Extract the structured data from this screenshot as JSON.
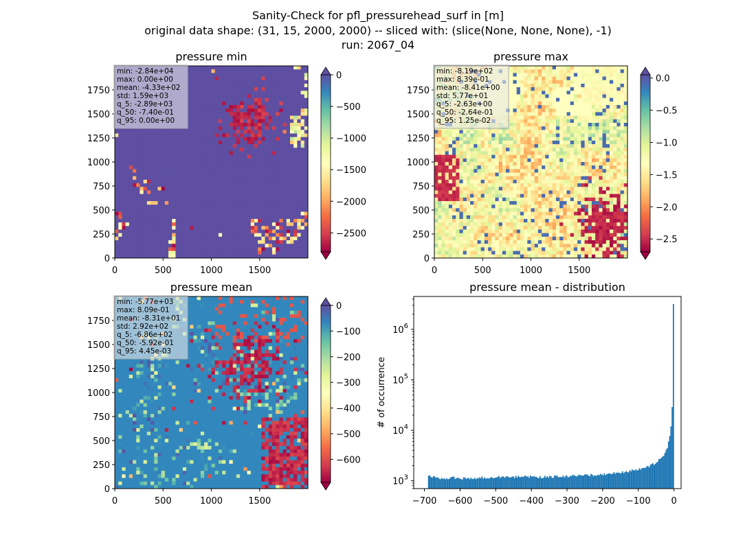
{
  "figure": {
    "title_lines": [
      "Sanity-Check for pfl_pressurehead_surf in [m]",
      "original data shape: (31, 15, 2000, 2000) -- sliced with: (slice(None, None, None), -1)",
      "run: 2067_04"
    ]
  },
  "colors": {
    "hist_bar": "#1f77b4",
    "colormap": "Spectral"
  },
  "panels": {
    "min": {
      "title": "pressure min",
      "stats": [
        "min: -2.84e+04",
        "max: 0.00e+00",
        "mean: -4.33e+02",
        "std: 1.59e+03",
        "q_5: -2.89e+03",
        "q_50: -7.40e-01",
        "q_95: 0.00e+00"
      ],
      "xticks": [
        "0",
        "500",
        "1000",
        "1500"
      ],
      "yticks": [
        "0",
        "250",
        "500",
        "750",
        "1000",
        "1250",
        "1500",
        "1750"
      ],
      "colorbar": {
        "ticks": [
          "0",
          "−500",
          "−1000",
          "−1500",
          "−2000",
          "−2500"
        ],
        "range": [
          -2800,
          0
        ],
        "extend": "both"
      }
    },
    "max": {
      "title": "pressure max",
      "stats": [
        "min: -8.19e+02",
        "max: 8.39e-01",
        "mean: -8.41e+00",
        "std: 5.77e+01",
        "q_5: -2.63e+00",
        "q_50: -2.64e-01",
        "q_95: 1.25e-02"
      ],
      "xticks": [
        "0",
        "500",
        "1000",
        "1500"
      ],
      "yticks": [
        "0",
        "250",
        "500",
        "750",
        "1000",
        "1250",
        "1500",
        "1750"
      ],
      "colorbar": {
        "ticks": [
          "0.0",
          "−0.5",
          "−1.0",
          "−1.5",
          "−2.0",
          "−2.5"
        ],
        "range": [
          -2.7,
          0.05
        ],
        "extend": "both"
      }
    },
    "mean": {
      "title": "pressure mean",
      "stats": [
        "min: -5.77e+03",
        "max: 8.09e-01",
        "mean: -8.31e+01",
        "std: 2.92e+02",
        "q_5: -6.86e+02",
        "q_50: -5.92e-01",
        "q_95: 4.45e-03"
      ],
      "xticks": [
        "0",
        "500",
        "1000",
        "1500"
      ],
      "yticks": [
        "0",
        "250",
        "500",
        "750",
        "1000",
        "1250",
        "1500",
        "1750"
      ],
      "colorbar": {
        "ticks": [
          "0",
          "−100",
          "−200",
          "−300",
          "−400",
          "−500",
          "−600"
        ],
        "range": [
          -690,
          0
        ],
        "extend": "both"
      }
    },
    "hist": {
      "title": "pressure mean - distribution",
      "ylabel": "# of occurrence",
      "xticks": [
        "−700",
        "−600",
        "−500",
        "−400",
        "−300",
        "−200",
        "−100",
        "0"
      ],
      "yticks": [
        "10^3",
        "10^4",
        "10^5",
        "10^6"
      ]
    }
  },
  "chart_data": [
    {
      "type": "heatmap",
      "title": "pressure min",
      "x_range": [
        0,
        2000
      ],
      "y_range": [
        0,
        2000
      ],
      "colorbar_range": [
        -2800,
        0
      ],
      "colormap": "Spectral"
    },
    {
      "type": "heatmap",
      "title": "pressure max",
      "x_range": [
        0,
        2000
      ],
      "y_range": [
        0,
        2000
      ],
      "colorbar_range": [
        -2.7,
        0.05
      ],
      "colormap": "Spectral"
    },
    {
      "type": "heatmap",
      "title": "pressure mean",
      "x_range": [
        0,
        2000
      ],
      "y_range": [
        0,
        2000
      ],
      "colorbar_range": [
        -690,
        0
      ],
      "colormap": "Spectral"
    },
    {
      "type": "bar",
      "title": "pressure mean - distribution",
      "ylabel": "# of occurrence",
      "yscale": "log",
      "xlim": [
        -730,
        20
      ],
      "ylim": [
        700,
        4500000
      ],
      "bin_width": 3.4,
      "x": [
        -690,
        -680,
        -670,
        -660,
        -650,
        -640,
        -630,
        -620,
        -610,
        -600,
        -590,
        -580,
        -570,
        -560,
        -550,
        -540,
        -530,
        -520,
        -510,
        -500,
        -490,
        -480,
        -470,
        -460,
        -450,
        -440,
        -430,
        -420,
        -410,
        -400,
        -390,
        -380,
        -370,
        -360,
        -350,
        -340,
        -330,
        -320,
        -310,
        -300,
        -290,
        -280,
        -270,
        -260,
        -250,
        -240,
        -230,
        -220,
        -210,
        -200,
        -190,
        -180,
        -170,
        -160,
        -150,
        -140,
        -130,
        -120,
        -110,
        -100,
        -90,
        -80,
        -70,
        -60,
        -50,
        -40,
        -30,
        -20,
        -15,
        -10,
        -7,
        -5,
        -3,
        -1.7,
        0
      ],
      "values": [
        1300,
        1150,
        1180,
        1120,
        1100,
        1130,
        1120,
        1150,
        1120,
        1090,
        1130,
        1110,
        1150,
        1120,
        1140,
        1170,
        1150,
        1160,
        1190,
        1200,
        1180,
        1190,
        1200,
        1210,
        1170,
        1200,
        1190,
        1210,
        1220,
        1200,
        1210,
        1180,
        1190,
        1220,
        1210,
        1200,
        1220,
        1230,
        1240,
        1220,
        1230,
        1260,
        1250,
        1270,
        1280,
        1290,
        1300,
        1320,
        1340,
        1350,
        1380,
        1390,
        1420,
        1450,
        1460,
        1500,
        1540,
        1580,
        1650,
        1700,
        1780,
        1850,
        1950,
        2100,
        2300,
        2600,
        3100,
        4200,
        6000,
        9500,
        15000,
        26000,
        70000,
        3200000,
        0
      ]
    }
  ]
}
